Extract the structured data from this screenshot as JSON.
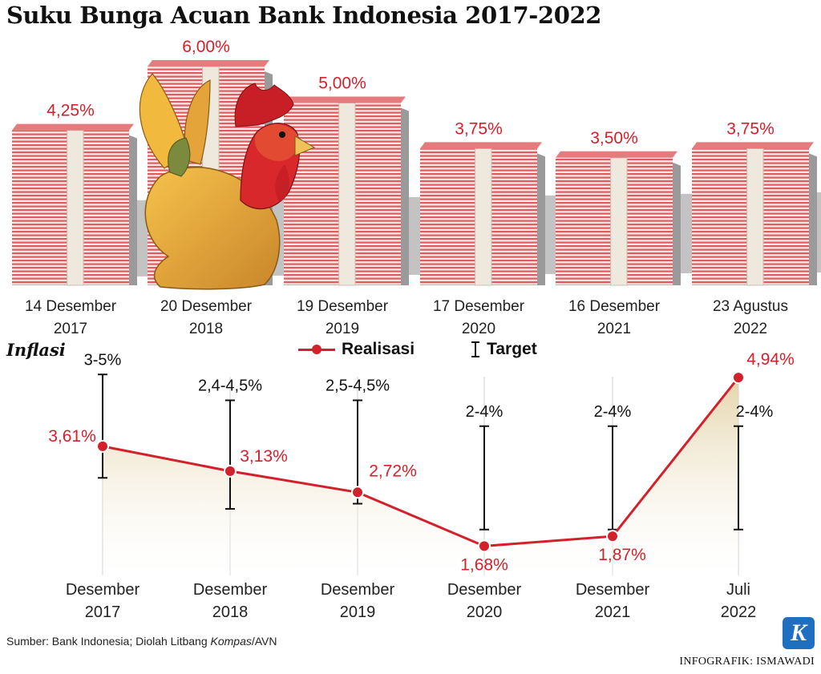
{
  "title": "Suku Bunga Acuan Bank Indonesia 2017-2022",
  "colors": {
    "accent_red": "#d4202b",
    "bill_stripe": "#e05a5e",
    "bill_core": "#efe9dd",
    "area_fill": "#e8dbb8",
    "target_bar": "#111111"
  },
  "chart_data": [
    {
      "type": "bar",
      "title": "Suku Bunga Acuan Bank Indonesia 2017-2022",
      "categories": [
        [
          "14 Desember",
          "2017"
        ],
        [
          "20 Desember",
          "2018"
        ],
        [
          "19 Desember",
          "2019"
        ],
        [
          "17 Desember",
          "2020"
        ],
        [
          "16 Desember",
          "2021"
        ],
        [
          "23 Agustus",
          "2022"
        ]
      ],
      "values": [
        4.25,
        6.0,
        5.0,
        3.75,
        3.5,
        3.75
      ],
      "value_labels": [
        "4,25%",
        "6,00%",
        "5,00%",
        "3,75%",
        "3,50%",
        "3,75%"
      ],
      "unit": "%",
      "ylim": [
        0,
        6
      ],
      "grid": false,
      "legend": "none"
    },
    {
      "type": "line",
      "title": "Inflasi",
      "categories": [
        [
          "Desember",
          "2017"
        ],
        [
          "Desember",
          "2018"
        ],
        [
          "Desember",
          "2019"
        ],
        [
          "Desember",
          "2020"
        ],
        [
          "Desember",
          "2021"
        ],
        [
          "Juli",
          "2022"
        ]
      ],
      "series": [
        {
          "name": "Realisasi",
          "values": [
            3.61,
            3.13,
            2.72,
            1.68,
            1.87,
            4.94
          ],
          "value_labels": [
            "3,61%",
            "3,13%",
            "2,72%",
            "1,68%",
            "1,87%",
            "4,94%"
          ]
        }
      ],
      "target": {
        "name": "Target",
        "ranges": [
          [
            3,
            5
          ],
          [
            2.4,
            4.5
          ],
          [
            2.5,
            4.5
          ],
          [
            2,
            4
          ],
          [
            2,
            4
          ],
          [
            2,
            4
          ]
        ],
        "labels": [
          "3-5%",
          "2,4-4,5%",
          "2,5-4,5%",
          "2-4%",
          "2-4%",
          "2-4%"
        ]
      },
      "ylim": [
        0,
        5.5
      ],
      "grid": false,
      "legend": "top"
    }
  ],
  "inflasi": {
    "title": "Inflasi",
    "legend_realisasi": "Realisasi",
    "legend_target": "Target"
  },
  "footer": {
    "source_prefix": "Sumber: Bank Indonesia; Diolah Litbang ",
    "source_italic": "Kompas",
    "source_suffix": "/AVN",
    "credit": "INFOGRAFIK: ISMAWADI",
    "logo_letter": "K"
  }
}
